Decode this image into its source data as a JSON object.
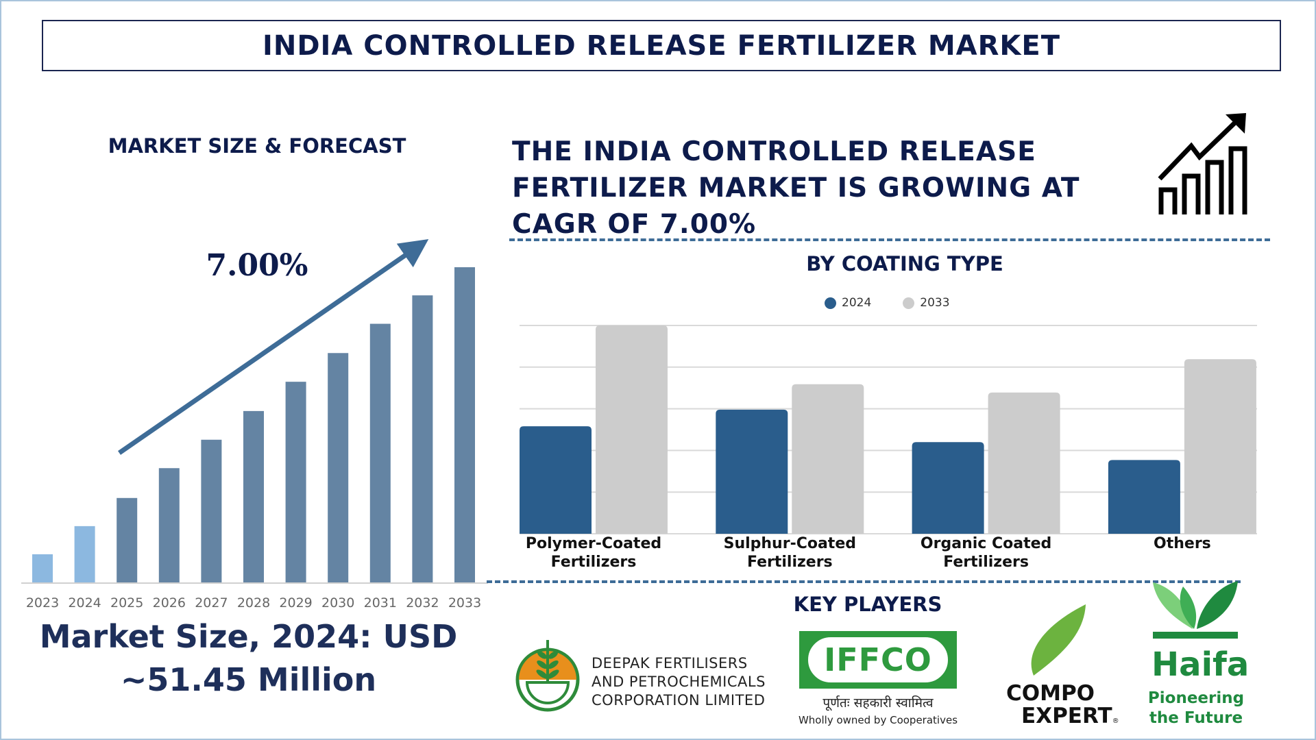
{
  "title": "INDIA CONTROLLED RELEASE FERTILIZER MARKET",
  "left_panel": {
    "heading": "MARKET SIZE & FORECAST",
    "cagr_label": "7.00%",
    "market_size_line1": "Market Size, 2024: USD",
    "market_size_line2": "~51.45 Million"
  },
  "headline": {
    "line1": "THE INDIA CONTROLLED RELEASE",
    "line2": "FERTILIZER MARKET IS GROWING AT",
    "line3": "CAGR OF 7.00%"
  },
  "colors": {
    "navy": "#0d1b4b",
    "bar_forecast": "#6484a3",
    "bar_light": "#8cb8e0",
    "series_2024": "#2a5d8c",
    "series_2033": "#cccccc",
    "dash": "#3e6c97"
  },
  "icons": [
    "growth-chart-icon",
    "trend-arrow-icon"
  ],
  "chart_data": [
    {
      "type": "bar",
      "title": "MARKET SIZE & FORECAST",
      "categories": [
        "2023",
        "2024",
        "2025",
        "2026",
        "2027",
        "2028",
        "2029",
        "2030",
        "2031",
        "2032",
        "2033"
      ],
      "values": [
        1.0,
        2.0,
        3.0,
        4.06,
        5.07,
        6.09,
        7.13,
        8.15,
        9.19,
        10.2,
        11.2
      ],
      "ylim": [
        0,
        11.2
      ],
      "axis_labels_shown": false,
      "grid": false,
      "annotation": "7.00%"
    },
    {
      "type": "bar",
      "title": "BY COATING TYPE",
      "categories": [
        [
          "Polymer-Coated",
          "Fertilizers"
        ],
        [
          "Sulphur-Coated",
          "Fertilizers"
        ],
        [
          "Organic Coated",
          "Fertilizers"
        ],
        [
          "Others"
        ]
      ],
      "series": [
        {
          "name": "2024",
          "values": [
            2.58,
            2.98,
            2.2,
            1.77
          ]
        },
        {
          "name": "2033",
          "values": [
            5.0,
            3.59,
            3.39,
            4.19
          ]
        }
      ],
      "ylim": [
        0,
        5
      ],
      "grid": true,
      "legend": "top-center",
      "y_tick_labels_shown": false
    }
  ],
  "key_players": {
    "heading": "KEY PLAYERS",
    "deepak": {
      "line1": "DEEPAK FERTILISERS",
      "line2": "AND PETROCHEMICALS",
      "line3": "CORPORATION LIMITED"
    },
    "iffco": {
      "name": "IFFCO",
      "hindi": "पूर्णतः सहकारी स्वामित्व",
      "caption": "Wholly owned by Cooperatives"
    },
    "compo": {
      "line1": "COMPO",
      "line2": "EXPERT",
      "mark": "®"
    },
    "haifa": {
      "name": "Haifa",
      "line1": "Pioneering",
      "line2": "the Future"
    }
  }
}
